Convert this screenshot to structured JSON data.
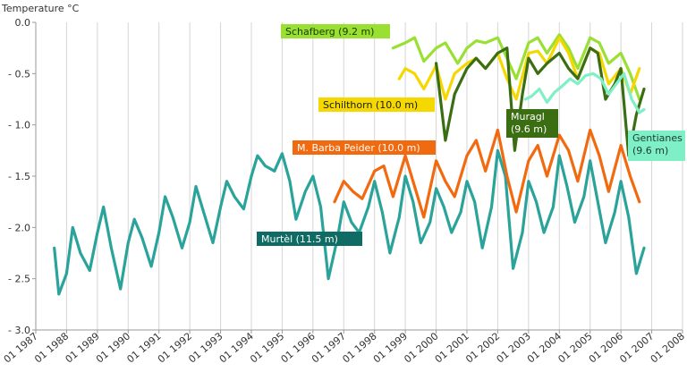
{
  "chart_data": {
    "type": "line",
    "ylabel": "Temperature °C",
    "xlabel": "",
    "ylim": [
      -3.0,
      0.0
    ],
    "xlim": [
      1987,
      2008
    ],
    "y_ticks": [
      0.0,
      -0.5,
      -1.0,
      -1.5,
      -2.0,
      -2.5,
      -3.0
    ],
    "y_tick_labels": [
      "0.0",
      "- 0.5",
      "- 1.0",
      "- 1.5",
      "- 2.0",
      "- 2.5",
      "- 3.0"
    ],
    "x_ticks": [
      1987,
      1988,
      1989,
      1990,
      1991,
      1992,
      1993,
      1994,
      1995,
      1996,
      1997,
      1998,
      1999,
      2000,
      2001,
      2002,
      2003,
      2004,
      2005,
      2006,
      2007,
      2008
    ],
    "x_tick_labels": [
      "01 1987",
      "01 1988",
      "01 1989",
      "01 1990",
      "01 1991",
      "01 1992",
      "01 1993",
      "01 1994",
      "01 1995",
      "01 1996",
      "01 1997",
      "01 1998",
      "01 1999",
      "01 2000",
      "01 2001",
      "01 2002",
      "01 2003",
      "01 2004",
      "01 2005",
      "01 2006",
      "01 2007",
      "01 2008"
    ],
    "grid": "vertical",
    "series": [
      {
        "name": "Murtèl (11.5 m)",
        "color": "#2aa39a",
        "label_bg": "#0f6b63",
        "label_color": "#ffffff",
        "x": [
          1987.6,
          1987.75,
          1988.0,
          1988.2,
          1988.45,
          1988.75,
          1989.0,
          1989.2,
          1989.45,
          1989.75,
          1990.0,
          1990.2,
          1990.45,
          1990.75,
          1991.0,
          1991.2,
          1991.45,
          1991.75,
          1992.0,
          1992.2,
          1992.45,
          1992.75,
          1993.0,
          1993.2,
          1993.45,
          1993.75,
          1994.0,
          1994.2,
          1994.45,
          1994.75,
          1995.0,
          1995.25,
          1995.45,
          1995.75,
          1996.0,
          1996.25,
          1996.5,
          1996.8,
          1997.0,
          1997.25,
          1997.5,
          1997.8,
          1998.0,
          1998.25,
          1998.5,
          1998.8,
          1999.0,
          1999.25,
          1999.5,
          1999.8,
          2000.0,
          2000.25,
          2000.5,
          2000.8,
          2001.0,
          2001.25,
          2001.5,
          2001.8,
          2002.0,
          2002.25,
          2002.5,
          2002.8,
          2003.0,
          2003.25,
          2003.5,
          2003.8,
          2004.0,
          2004.25,
          2004.5,
          2004.8,
          2005.0,
          2005.25,
          2005.5,
          2005.8,
          2006.0,
          2006.25,
          2006.5,
          2006.75
        ],
        "y": [
          -2.2,
          -2.65,
          -2.45,
          -2.0,
          -2.25,
          -2.42,
          -2.05,
          -1.8,
          -2.2,
          -2.6,
          -2.15,
          -1.92,
          -2.1,
          -2.38,
          -2.05,
          -1.7,
          -1.9,
          -2.2,
          -1.95,
          -1.6,
          -1.85,
          -2.15,
          -1.8,
          -1.55,
          -1.7,
          -1.82,
          -1.5,
          -1.3,
          -1.4,
          -1.45,
          -1.28,
          -1.55,
          -1.92,
          -1.65,
          -1.5,
          -1.8,
          -2.5,
          -2.1,
          -1.75,
          -1.95,
          -2.05,
          -1.8,
          -1.55,
          -1.85,
          -2.25,
          -1.9,
          -1.5,
          -1.75,
          -2.15,
          -1.95,
          -1.62,
          -1.8,
          -2.05,
          -1.85,
          -1.55,
          -1.75,
          -2.2,
          -1.8,
          -1.25,
          -1.5,
          -2.4,
          -2.05,
          -1.55,
          -1.75,
          -2.05,
          -1.8,
          -1.3,
          -1.6,
          -1.95,
          -1.7,
          -1.35,
          -1.75,
          -2.15,
          -1.85,
          -1.55,
          -1.9,
          -2.45,
          -2.2
        ]
      },
      {
        "name": "M. Barba Peider (10.0 m)",
        "color": "#f26a10",
        "label_bg": "#f26a10",
        "label_color": "#ffffff",
        "x": [
          1996.7,
          1997.0,
          1997.3,
          1997.6,
          1998.0,
          1998.3,
          1998.6,
          1999.0,
          1999.3,
          1999.6,
          2000.0,
          2000.3,
          2000.6,
          2001.0,
          2001.3,
          2001.6,
          2002.0,
          2002.3,
          2002.6,
          2003.0,
          2003.3,
          2003.6,
          2004.0,
          2004.3,
          2004.6,
          2005.0,
          2005.3,
          2005.6,
          2006.0,
          2006.3,
          2006.6
        ],
        "y": [
          -1.75,
          -1.55,
          -1.65,
          -1.72,
          -1.45,
          -1.4,
          -1.7,
          -1.3,
          -1.6,
          -1.9,
          -1.35,
          -1.55,
          -1.7,
          -1.3,
          -1.15,
          -1.45,
          -1.05,
          -1.5,
          -1.85,
          -1.35,
          -1.2,
          -1.5,
          -1.1,
          -1.25,
          -1.55,
          -1.05,
          -1.3,
          -1.65,
          -1.2,
          -1.5,
          -1.75
        ]
      },
      {
        "name": "Schafberg  (9.2 m)",
        "color": "#99e033",
        "label_bg": "#99e033",
        "label_color": "#1a3a00",
        "x": [
          1998.6,
          1999.0,
          1999.3,
          1999.6,
          2000.0,
          2000.3,
          2000.7,
          2001.0,
          2001.3,
          2001.6,
          2002.0,
          2002.3,
          2002.6,
          2003.0,
          2003.3,
          2003.6,
          2004.0,
          2004.3,
          2004.6,
          2005.0,
          2005.3,
          2005.6,
          2006.0,
          2006.3,
          2006.6
        ],
        "y": [
          -0.25,
          -0.2,
          -0.15,
          -0.38,
          -0.25,
          -0.2,
          -0.4,
          -0.25,
          -0.18,
          -0.2,
          -0.15,
          -0.35,
          -0.55,
          -0.2,
          -0.15,
          -0.3,
          -0.12,
          -0.25,
          -0.45,
          -0.15,
          -0.2,
          -0.4,
          -0.3,
          -0.5,
          -0.75
        ]
      },
      {
        "name": "Schilthorn (10.0 m)",
        "color": "#f5d800",
        "label_bg": "#f5d800",
        "label_color": "#1a1a1a",
        "x": [
          1998.8,
          1999.0,
          1999.3,
          1999.6,
          2000.0,
          2000.3,
          2000.6,
          2001.0,
          2001.3,
          2001.6,
          2002.0,
          2002.3,
          2002.6,
          2003.0,
          2003.3,
          2003.6,
          2004.0,
          2004.3,
          2004.6,
          2005.0,
          2005.3,
          2005.6,
          2006.0,
          2006.3,
          2006.6
        ],
        "y": [
          -0.55,
          -0.45,
          -0.5,
          -0.65,
          -0.42,
          -0.75,
          -0.5,
          -0.4,
          -0.35,
          -0.45,
          -0.3,
          -0.55,
          -0.75,
          -0.3,
          -0.28,
          -0.4,
          -0.15,
          -0.3,
          -0.55,
          -0.25,
          -0.3,
          -0.6,
          -0.45,
          -0.7,
          -0.45
        ]
      },
      {
        "name": "Muragl\n(9.6 m)",
        "color": "#3b6e12",
        "label_bg": "#3b6e12",
        "label_color": "#ffffff",
        "x": [
          2000.0,
          2000.3,
          2000.6,
          2001.0,
          2001.3,
          2001.6,
          2002.0,
          2002.3,
          2002.55,
          2002.8,
          2003.0,
          2003.3,
          2003.6,
          2004.0,
          2004.3,
          2004.6,
          2005.0,
          2005.25,
          2005.5,
          2005.8,
          2006.0,
          2006.25,
          2006.5,
          2006.75
        ],
        "y": [
          -0.4,
          -1.15,
          -0.7,
          -0.45,
          -0.35,
          -0.45,
          -0.3,
          -0.25,
          -1.25,
          -0.7,
          -0.35,
          -0.5,
          -0.4,
          -0.3,
          -0.45,
          -0.55,
          -0.25,
          -0.3,
          -0.75,
          -0.6,
          -0.45,
          -1.3,
          -0.9,
          -0.65
        ]
      },
      {
        "name": "Gentianes\n(9.6 m)",
        "color": "#7ff0c6",
        "label_bg": "#7ff0c6",
        "label_color": "#1a3a30",
        "x": [
          2002.9,
          2003.1,
          2003.35,
          2003.6,
          2003.85,
          2004.1,
          2004.35,
          2004.6,
          2004.85,
          2005.1,
          2005.35,
          2005.6,
          2005.85,
          2006.1,
          2006.35,
          2006.6,
          2006.75
        ],
        "y": [
          -0.75,
          -0.72,
          -0.65,
          -0.78,
          -0.68,
          -0.62,
          -0.55,
          -0.6,
          -0.52,
          -0.5,
          -0.55,
          -0.7,
          -0.6,
          -0.5,
          -0.75,
          -0.88,
          -0.85
        ]
      }
    ]
  }
}
